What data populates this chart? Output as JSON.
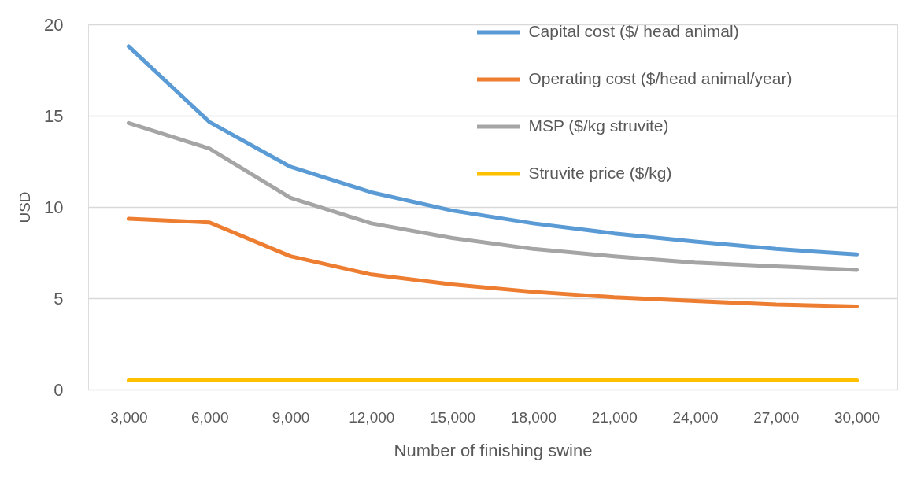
{
  "chart_data": {
    "type": "line",
    "xlabel": "Number of finishing  swine",
    "ylabel": "USD",
    "categories": [
      "3,000",
      "6,000",
      "9,000",
      "12,000",
      "15,000",
      "18,000",
      "21,000",
      "24,000",
      "27,000",
      "30,000"
    ],
    "ylim": [
      0,
      20
    ],
    "yticks": [
      0,
      5,
      10,
      15,
      20
    ],
    "grid": "y",
    "legend": "top right",
    "line_style": "solid",
    "series": [
      {
        "name": "Capital cost ($/ head animal)",
        "color": "#5b9bd5",
        "values": [
          18.8,
          14.65,
          12.2,
          10.8,
          9.8,
          9.1,
          8.55,
          8.1,
          7.7,
          7.4
        ]
      },
      {
        "name": "Operating cost ($/head animal/year)",
        "color": "#ed7d31",
        "values": [
          9.35,
          9.15,
          7.3,
          6.3,
          5.75,
          5.35,
          5.05,
          4.85,
          4.65,
          4.55
        ]
      },
      {
        "name": "MSP ($/kg struvite)",
        "color": "#a5a5a5",
        "values": [
          14.6,
          13.2,
          10.5,
          9.1,
          8.3,
          7.7,
          7.3,
          6.95,
          6.75,
          6.55
        ]
      },
      {
        "name": "Struvite price ($/kg)",
        "color": "#ffc000",
        "values": [
          0.5,
          0.5,
          0.5,
          0.5,
          0.5,
          0.5,
          0.5,
          0.5,
          0.5,
          0.5
        ]
      }
    ]
  }
}
